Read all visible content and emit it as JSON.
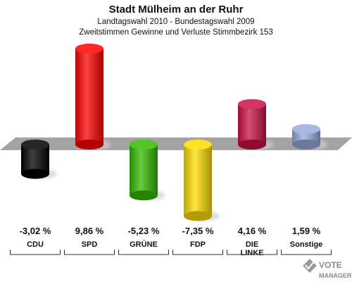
{
  "chart_data": {
    "type": "bar",
    "title": "Stadt Mülheim an der Ruhr",
    "subtitle_lines": [
      "Landtagswahl 2010 - Bundestagswahl 2009",
      "Zweitstimmen Gewinne und Verluste Stimmbezirk 153"
    ],
    "categories": [
      "CDU",
      "SPD",
      "GRÜNE",
      "FDP",
      "DIE LINKE",
      "Sonstige"
    ],
    "category_lines": [
      [
        "CDU"
      ],
      [
        "SPD"
      ],
      [
        "GRÜNE"
      ],
      [
        "FDP"
      ],
      [
        "DIE",
        "LINKE"
      ],
      [
        "Sonstige"
      ]
    ],
    "values": [
      -3.02,
      9.86,
      -5.23,
      -7.35,
      4.16,
      1.59
    ],
    "value_labels": [
      "-3,02 %",
      "9,86 %",
      "-5,23 %",
      "-7,35 %",
      "4,16 %",
      "1,59 %"
    ],
    "colors": [
      "#000000",
      "#ff0000",
      "#33bb00",
      "#ffdd00",
      "#cc1144",
      "#99aadd"
    ],
    "ylim": [
      -7.35,
      9.86
    ],
    "grid": false
  },
  "logo": {
    "line1": "VOTE",
    "line2": "MANAGER"
  }
}
